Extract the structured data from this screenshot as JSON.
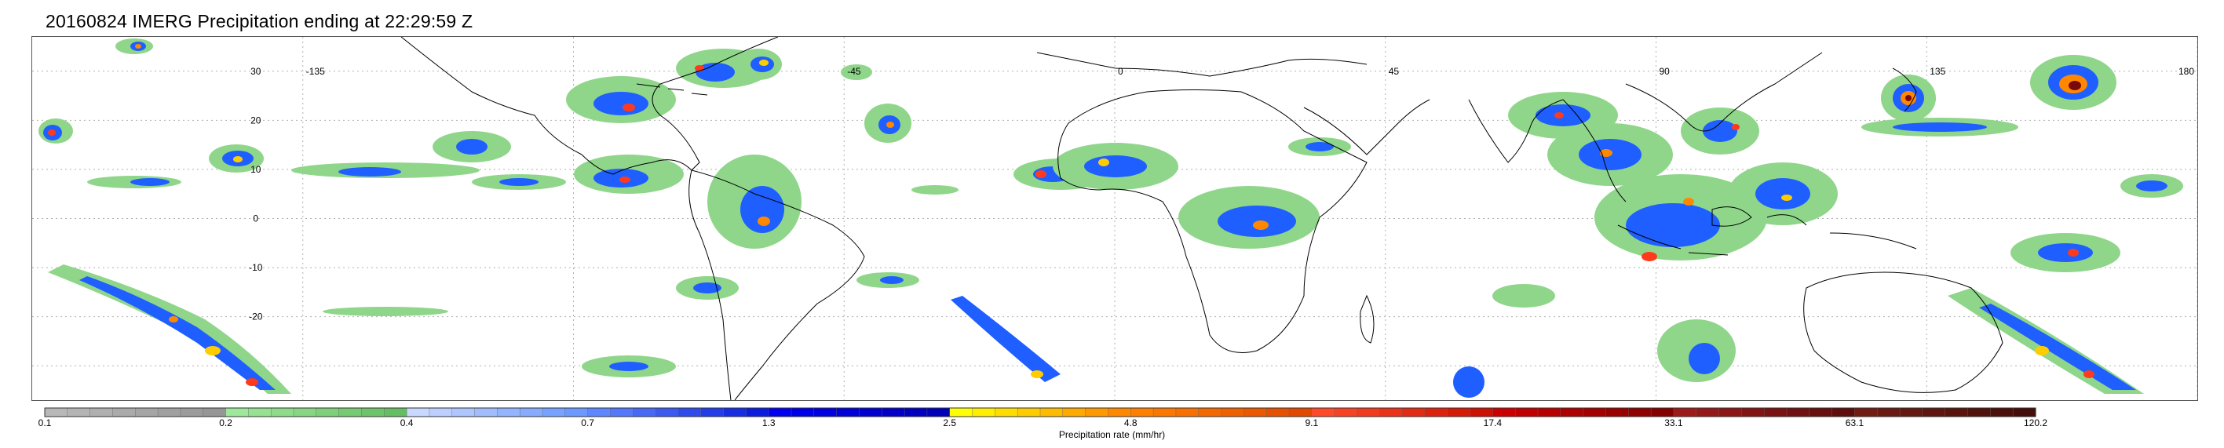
{
  "title": "20160824 IMERG Precipitation ending at 22:29:59 Z",
  "map": {
    "lat_labels": [
      "30",
      "20",
      "10",
      "0",
      "-10",
      "-20"
    ],
    "lat_values": [
      30,
      20,
      10,
      0,
      -10,
      -20
    ],
    "lon_labels": [
      "-135",
      "-45",
      "0",
      "45",
      "90",
      "135",
      "180"
    ],
    "lon_values": [
      -135,
      -45,
      0,
      45,
      90,
      135,
      180
    ],
    "lat_range": [
      -37,
      37
    ],
    "lon_range": [
      -180,
      180
    ],
    "grid": "dotted",
    "colors": {
      "land_outline": "#000000",
      "grid": "#b0b0b0",
      "light_rain": "#8fd68a",
      "moderate_rain": "#1f5fff",
      "heavy_rain": "#ff3a1c",
      "extreme_rain": "#7a0a0a"
    }
  },
  "colorbar": {
    "tick_labels": [
      "0.1",
      "0.2",
      "0.4",
      "0.7",
      "1.3",
      "2.5",
      "4.8",
      "9.1",
      "17.4",
      "33.1",
      "63.1",
      "120.2"
    ],
    "label": "Precipitation rate (mm/hr)",
    "group_colors": [
      [
        "#b8b8b8",
        "#b4b4b4",
        "#afafaf",
        "#aaaaaa",
        "#a5a5a5",
        "#a0a0a0",
        "#9b9b9b",
        "#969696"
      ],
      [
        "#9ee89b",
        "#96e292",
        "#8edc8a",
        "#86d682",
        "#7ed07a",
        "#76ca72",
        "#6ec46a",
        "#66be62"
      ],
      [
        "#c9d8ff",
        "#bccfff",
        "#aec6ff",
        "#a1bdff",
        "#93b4ff",
        "#86abff",
        "#78a2ff",
        "#6b99ff"
      ],
      [
        "#5f87ff",
        "#5378fb",
        "#4769f6",
        "#3b5af2",
        "#2f4bed",
        "#233ce9",
        "#172de4",
        "#0b1ee0"
      ],
      [
        "#0000f0",
        "#0000e8",
        "#0000e0",
        "#0000d8",
        "#0000d0",
        "#0000c8",
        "#0000c0",
        "#0000b8"
      ],
      [
        "#ffff00",
        "#ffee00",
        "#ffdd00",
        "#ffcc00",
        "#ffbb00",
        "#ffaa00",
        "#ff9900",
        "#ff8800"
      ],
      [
        "#ff8000",
        "#fb7800",
        "#f77000",
        "#f36800",
        "#ef6000",
        "#eb5800",
        "#e75000",
        "#e34800"
      ],
      [
        "#ff4a2a",
        "#f84224",
        "#f13a1e",
        "#ea3218",
        "#e32a12",
        "#dc220c",
        "#d51a06",
        "#ce1200"
      ],
      [
        "#cc0000",
        "#c20000",
        "#b80000",
        "#ae0000",
        "#a40000",
        "#9a0000",
        "#900000",
        "#860000"
      ],
      [
        "#9e1a1a",
        "#951818",
        "#8c1616",
        "#831414",
        "#7a1212",
        "#711010",
        "#680e0e",
        "#5f0c0c"
      ],
      [
        "#701c12",
        "#6a1a10",
        "#64180f",
        "#5e160e",
        "#58140d",
        "#52120c",
        "#4c100b",
        "#460e0a"
      ]
    ]
  }
}
